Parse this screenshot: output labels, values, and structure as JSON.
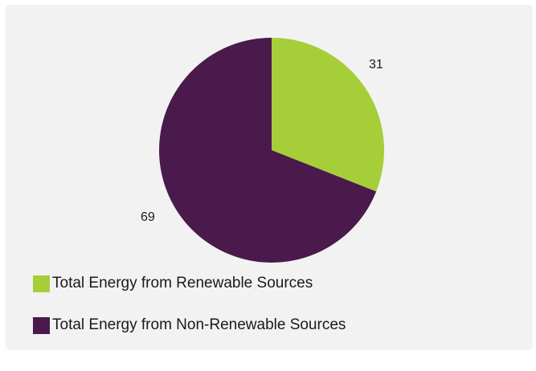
{
  "chart_data": {
    "type": "pie",
    "title": "",
    "slices": [
      {
        "name": "Total Energy from Renewable Sources",
        "value": 31,
        "label": "31",
        "color": "#a6ce39"
      },
      {
        "name": "Total Energy from Non-Renewable Sources",
        "value": 69,
        "label": "69",
        "color": "#4a1a4c"
      }
    ],
    "legend_placement": "bottom-left"
  },
  "legend": {
    "items": [
      {
        "label": "Total Energy from Renewable Sources",
        "color": "#a6ce39"
      },
      {
        "label": "Total Energy from Non-Renewable Sources",
        "color": "#4a1a4c"
      }
    ]
  }
}
